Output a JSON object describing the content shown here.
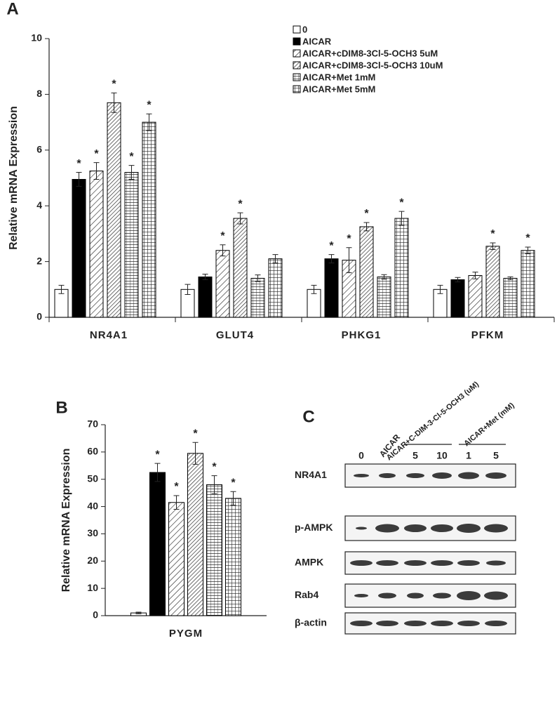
{
  "chart_data": [
    {
      "type": "bar",
      "panel_label": "A",
      "y_label": "Relative mRNA Expression",
      "categories": [
        "NR4A1",
        "GLUT4",
        "PHKG1",
        "PFKM"
      ],
      "ylim": [
        0,
        10
      ],
      "yticks": [
        0,
        2,
        4,
        6,
        8,
        10
      ],
      "legend": "top-right",
      "series": [
        {
          "name": "0",
          "color": "#000000",
          "pattern": "white",
          "values": [
            1.0,
            1.0,
            1.0,
            1.0
          ],
          "errors": [
            0.15,
            0.18,
            0.15,
            0.15
          ],
          "markers": [
            null,
            null,
            null,
            null
          ]
        },
        {
          "name": "AICAR",
          "color": "#000000",
          "pattern": "black",
          "values": [
            4.95,
            1.45,
            2.1,
            1.35
          ],
          "errors": [
            0.25,
            0.1,
            0.15,
            0.08
          ],
          "markers": [
            "*",
            null,
            "*",
            null
          ]
        },
        {
          "name": "AICAR+cDIM8-3Cl-5-OCH3 5uM",
          "color": "#000000",
          "pattern": "diag-wide",
          "values": [
            5.25,
            2.4,
            2.05,
            1.5
          ],
          "errors": [
            0.3,
            0.2,
            0.45,
            0.12
          ],
          "markers": [
            "*",
            "*",
            "*",
            null
          ]
        },
        {
          "name": "AICAR+cDIM8-3Cl-5-OCH3 10uM",
          "color": "#000000",
          "pattern": "diag-dense",
          "values": [
            7.7,
            3.55,
            3.25,
            2.55
          ],
          "errors": [
            0.35,
            0.2,
            0.15,
            0.12
          ],
          "markers": [
            "*",
            "*",
            "*",
            "*"
          ]
        },
        {
          "name": "AICAR+Met 1mM",
          "color": "#000000",
          "pattern": "brick",
          "values": [
            5.2,
            1.4,
            1.45,
            1.4
          ],
          "errors": [
            0.25,
            0.12,
            0.08,
            0.05
          ],
          "markers": [
            "*",
            null,
            null,
            null
          ]
        },
        {
          "name": "AICAR+Met 5mM",
          "color": "#000000",
          "pattern": "grid",
          "values": [
            7.0,
            2.1,
            3.55,
            2.4
          ],
          "errors": [
            0.3,
            0.15,
            0.25,
            0.12
          ],
          "markers": [
            "*",
            null,
            "*",
            "*"
          ]
        }
      ]
    },
    {
      "type": "bar",
      "panel_label": "B",
      "y_label": "Relative mRNA  Expression",
      "categories": [
        "PYGM"
      ],
      "ylim": [
        0,
        70
      ],
      "yticks": [
        0,
        10,
        20,
        30,
        40,
        50,
        60,
        70
      ],
      "series": [
        {
          "color": "#000000",
          "pattern": "white",
          "values": [
            1.0
          ],
          "errors": [
            0.3
          ],
          "markers": [
            null
          ]
        },
        {
          "color": "#000000",
          "pattern": "black",
          "values": [
            52.5
          ],
          "errors": [
            3.3
          ],
          "markers": [
            "*"
          ]
        },
        {
          "color": "#000000",
          "pattern": "diag-wide",
          "values": [
            41.5
          ],
          "errors": [
            2.5
          ],
          "markers": [
            "*"
          ]
        },
        {
          "color": "#000000",
          "pattern": "diag-dense",
          "values": [
            59.5
          ],
          "errors": [
            4.0
          ],
          "markers": [
            "*"
          ]
        },
        {
          "color": "#000000",
          "pattern": "brick",
          "values": [
            48.0
          ],
          "errors": [
            3.3
          ],
          "markers": [
            "*"
          ]
        },
        {
          "color": "#000000",
          "pattern": "grid",
          "values": [
            43.0
          ],
          "errors": [
            2.5
          ],
          "markers": [
            "*"
          ]
        }
      ]
    }
  ],
  "blot": {
    "panel_label": "C",
    "columns": {
      "control": "0",
      "aicar": "AICAR",
      "cdim": "AICAR+C-DIM-3-Cl-5-OCH3 (uM)",
      "met": "AICAR+Met  (mM)"
    },
    "doses": [
      "5",
      "10",
      "1",
      "5"
    ],
    "rows": [
      "NR4A1",
      "p-AMPK",
      "AMPK",
      "Rab4",
      "β-actin"
    ]
  }
}
